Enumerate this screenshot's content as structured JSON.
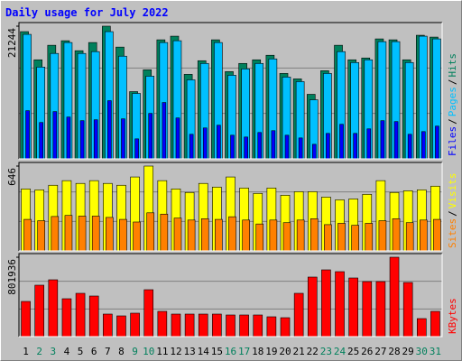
{
  "title": "Daily usage for July 2022",
  "legend_separator": "/",
  "chart_data": [
    {
      "type": "bar",
      "ylim": [
        0,
        21244
      ],
      "yticks": [
        21244
      ],
      "series": [
        {
          "name": "Hits",
          "color": "#00805c",
          "values": [
            20371,
            15860,
            18188,
            18916,
            17315,
            18625,
            21244,
            17897,
            10767,
            14260,
            19061,
            19643,
            13532,
            15715,
            19061,
            13968,
            15278,
            15860,
            16588,
            13677,
            12804,
            10331,
            14114,
            18188,
            15860,
            16151,
            19207,
            19061,
            15860,
            19789,
            19498
          ]
        },
        {
          "name": "Pages",
          "color": "#00c0ff",
          "values": [
            19934,
            14697,
            16880,
            18625,
            16878,
            17170,
            20371,
            16442,
            10476,
            13240,
            18625,
            18916,
            12659,
            15278,
            18625,
            13387,
            14405,
            15278,
            16006,
            13095,
            12368,
            9458,
            13677,
            17170,
            15423,
            15860,
            18770,
            18770,
            15423,
            19643,
            19207
          ]
        },
        {
          "name": "Files",
          "color": "#0000ff",
          "values": [
            7712,
            5820,
            7566,
            6692,
            6110,
            6256,
            9313,
            6402,
            3200,
            7275,
            9022,
            6547,
            3929,
            4947,
            5384,
            3783,
            3492,
            4220,
            4511,
            3783,
            3346,
            2328,
            4074,
            5529,
            4074,
            4802,
            6110,
            5966,
            3929,
            4365,
            5238
          ]
        }
      ]
    },
    {
      "type": "bar",
      "ylim": [
        0,
        646
      ],
      "yticks": [
        646
      ],
      "series": [
        {
          "name": "Visits",
          "color": "#ffff00",
          "values": [
            472,
            465,
            500,
            535,
            514,
            535,
            514,
            500,
            563,
            646,
            535,
            472,
            445,
            514,
            486,
            563,
            479,
            438,
            479,
            424,
            451,
            451,
            410,
            389,
            396,
            431,
            535,
            445,
            458,
            465,
            493
          ]
        },
        {
          "name": "Sites",
          "color": "#ff8000",
          "values": [
            240,
            230,
            262,
            270,
            265,
            265,
            255,
            240,
            220,
            290,
            280,
            250,
            235,
            245,
            240,
            260,
            235,
            205,
            235,
            215,
            235,
            245,
            200,
            210,
            195,
            210,
            230,
            245,
            215,
            235,
            240
          ]
        }
      ]
    },
    {
      "type": "bar",
      "ylim": [
        0,
        801936
      ],
      "yticks": [
        801936
      ],
      "categories": [
        "1",
        "2",
        "3",
        "4",
        "5",
        "6",
        "7",
        "8",
        "9",
        "10",
        "11",
        "12",
        "13",
        "14",
        "15",
        "16",
        "17",
        "18",
        "19",
        "20",
        "21",
        "22",
        "23",
        "24",
        "25",
        "26",
        "27",
        "28",
        "29",
        "30",
        "31"
      ],
      "category_colors": [
        "#000000",
        "#00805c",
        "#00805c",
        "#000000",
        "#000000",
        "#000000",
        "#000000",
        "#000000",
        "#00805c",
        "#00805c",
        "#000000",
        "#000000",
        "#000000",
        "#000000",
        "#000000",
        "#00805c",
        "#00805c",
        "#000000",
        "#000000",
        "#000000",
        "#000000",
        "#000000",
        "#00805c",
        "#00805c",
        "#000000",
        "#000000",
        "#000000",
        "#000000",
        "#000000",
        "#00805c",
        "#00805c"
      ],
      "series": [
        {
          "name": "KBytes",
          "color": "#ff0000",
          "values": [
            355407,
            519441,
            574119,
            382746,
            437424,
            410085,
            227825,
            209599,
            236938,
            473876,
            255164,
            227825,
            227825,
            227825,
            227825,
            218712,
            218712,
            218712,
            200486,
            191373,
            437424,
            601458,
            674362,
            656136,
            592345,
            555893,
            555893,
            801936,
            546780,
            182260,
            255164
          ]
        }
      ]
    }
  ]
}
